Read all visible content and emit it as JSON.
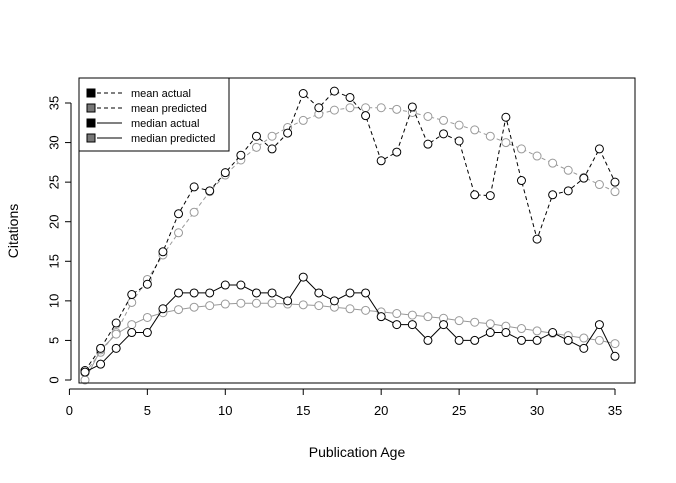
{
  "chart_data": {
    "type": "line",
    "xlabel": "Publication Age",
    "ylabel": "Citations",
    "xlim": [
      0,
      36
    ],
    "ylim": [
      0,
      37
    ],
    "xticks": [
      0,
      5,
      10,
      15,
      20,
      25,
      30,
      35
    ],
    "yticks": [
      0,
      5,
      10,
      15,
      20,
      25,
      30,
      35
    ],
    "grid": false,
    "legend_position": "top-left",
    "x": [
      1,
      2,
      3,
      4,
      5,
      6,
      7,
      8,
      9,
      10,
      11,
      12,
      13,
      14,
      15,
      16,
      17,
      18,
      19,
      20,
      21,
      22,
      23,
      24,
      25,
      26,
      27,
      28,
      29,
      30,
      31,
      32,
      33,
      34,
      35
    ],
    "series": [
      {
        "name": "mean actual",
        "color": "#000000",
        "line_style": "dashed",
        "values": [
          1.2,
          4.0,
          7.2,
          10.8,
          12.1,
          16.2,
          21.0,
          24.4,
          23.9,
          26.2,
          28.4,
          30.8,
          29.2,
          31.2,
          36.2,
          34.4,
          36.5,
          35.7,
          33.4,
          27.7,
          28.8,
          34.5,
          29.8,
          31.1,
          30.2,
          23.4,
          23.3,
          33.2,
          25.2,
          17.8,
          23.4,
          23.9,
          25.5,
          29.2,
          25.0
        ]
      },
      {
        "name": "mean predicted",
        "color": "#999999",
        "line_style": "dashed",
        "values": [
          0.9,
          3.5,
          6.0,
          9.8,
          12.7,
          15.8,
          18.6,
          21.2,
          23.8,
          25.9,
          27.8,
          29.4,
          30.8,
          31.9,
          32.8,
          33.6,
          34.1,
          34.4,
          34.4,
          34.4,
          34.2,
          33.8,
          33.3,
          32.8,
          32.2,
          31.6,
          30.8,
          30.0,
          29.2,
          28.3,
          27.4,
          26.5,
          25.6,
          24.7,
          23.8
        ]
      },
      {
        "name": "median actual",
        "color": "#000000",
        "line_style": "solid",
        "values": [
          1,
          2,
          4,
          6,
          6,
          9,
          11,
          11,
          11,
          12,
          12,
          11,
          11,
          10,
          13,
          11,
          10,
          11,
          11,
          8,
          7,
          7,
          5,
          7,
          5,
          5,
          6,
          6,
          5,
          5,
          6,
          5,
          4,
          7,
          3
        ]
      },
      {
        "name": "median predicted",
        "color": "#999999",
        "line_style": "solid",
        "values": [
          0.0,
          3.8,
          5.8,
          7.0,
          7.9,
          8.5,
          8.9,
          9.2,
          9.4,
          9.6,
          9.7,
          9.7,
          9.7,
          9.6,
          9.5,
          9.4,
          9.2,
          9.0,
          8.8,
          8.6,
          8.4,
          8.2,
          8.0,
          7.8,
          7.5,
          7.3,
          7.1,
          6.8,
          6.5,
          6.2,
          5.9,
          5.6,
          5.3,
          5.0,
          4.6
        ]
      }
    ]
  }
}
